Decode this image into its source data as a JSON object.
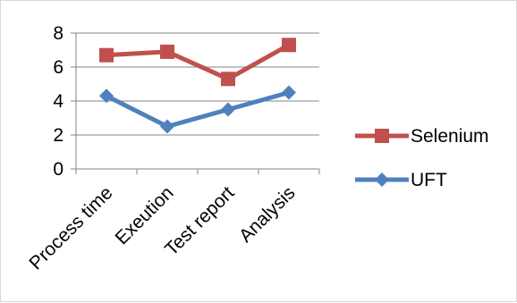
{
  "chart_data": {
    "type": "line",
    "categories": [
      "Process time",
      "Exeution",
      "Test report",
      "Analysis"
    ],
    "series": [
      {
        "name": "Selenium",
        "values": [
          6.7,
          6.9,
          5.3,
          7.3
        ],
        "color": "#c0504d",
        "marker": "square"
      },
      {
        "name": "UFT",
        "values": [
          4.3,
          2.5,
          3.5,
          4.5
        ],
        "color": "#4f81bd",
        "marker": "diamond"
      }
    ],
    "y_ticks": [
      "0",
      "2",
      "4",
      "6",
      "8"
    ],
    "ylim": [
      0,
      8
    ],
    "grid": true,
    "legend_position": "right"
  }
}
